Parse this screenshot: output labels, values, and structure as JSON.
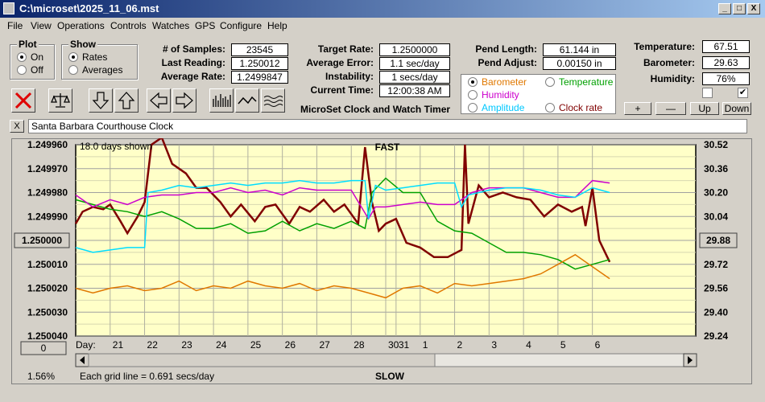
{
  "window": {
    "title": "C:\\microset\\2025_11_06.mst",
    "min": "_",
    "max": "□",
    "close": "X"
  },
  "menu": [
    "File",
    "View",
    "Operations",
    "Controls",
    "Watches",
    "GPS",
    "Configure",
    "Help"
  ],
  "plot_group": {
    "label": "Plot",
    "options": [
      "On",
      "Off"
    ],
    "selected": "On"
  },
  "show_group": {
    "label": "Show",
    "options": [
      "Rates",
      "Averages"
    ],
    "selected": "Rates"
  },
  "stats": {
    "samples_label": "# of Samples:",
    "samples": "23545",
    "last_label": "Last Reading:",
    "last": "1.250012",
    "avg_label": "Average Rate:",
    "avg": "1.2499847",
    "target_label": "Target Rate:",
    "target": "1.2500000",
    "avgerr_label": "Average Error:",
    "avgerr": "1.1 sec/day",
    "instab_label": "Instability:",
    "instab": "1 secs/day",
    "time_label": "Current Time:",
    "time": "12:00:38 AM",
    "pendlen_label": "Pend Length:",
    "pendlen": "61.144 in",
    "pendadj_label": "Pend Adjust:",
    "pendadj": "0.00150 in",
    "temp_label": "Temperature:",
    "temp": "67.51",
    "baro_label": "Barometer:",
    "baro": "29.63",
    "hum_label": "Humidity:",
    "hum": "76%"
  },
  "app_caption": "MicroSet Clock and Watch Timer",
  "sensor_select": {
    "options": [
      {
        "label": "Barometer",
        "color": "#e07800",
        "selected": true
      },
      {
        "label": "Temperature",
        "color": "#00a000",
        "selected": false
      },
      {
        "label": "Humidity",
        "color": "#cc00cc",
        "selected": false
      },
      {
        "label": "Clock rate",
        "color": "#800000",
        "selected": false
      },
      {
        "label": "Amplitude",
        "color": "#00c8ff",
        "selected": false
      }
    ]
  },
  "small_buttons": {
    "plus": "+",
    "minus": "—",
    "up": "Up",
    "down": "Down",
    "clear": "X",
    "zero": "0"
  },
  "checkboxes": [
    {
      "checked": false
    },
    {
      "checked": true
    }
  ],
  "clock_name": "Santa Barbara Courthouse Clock",
  "chart": {
    "top_label": "FAST",
    "bottom_label": "SLOW",
    "days_shown": "18.0 days shown",
    "grid_note": "Each grid line = 0.691 secs/day",
    "percent": "1.56%",
    "center_value": "1.250000",
    "right_value": "29.88",
    "day_label": "Day:"
  },
  "chart_data": {
    "type": "line",
    "left_axis": {
      "ticks": [
        "1.249960",
        "1.249970",
        "1.249980",
        "1.249990",
        "1.250000",
        "1.250010",
        "1.250020",
        "1.250030",
        "1.250040"
      ],
      "range": [
        1.24996,
        1.25004
      ],
      "reversed": true
    },
    "right_axis": {
      "ticks": [
        "30.52",
        "30.36",
        "30.20",
        "30.04",
        "29.88",
        "29.72",
        "29.56",
        "29.40",
        "29.24"
      ],
      "range": [
        29.24,
        30.52
      ]
    },
    "x_ticks": [
      "21",
      "22",
      "23",
      "24",
      "25",
      "26",
      "27",
      "28",
      "30",
      "31",
      "1",
      "2",
      "3",
      "4",
      "5",
      "6"
    ],
    "x_range": [
      0,
      18
    ],
    "x_tick_positions": [
      1,
      2,
      3,
      4,
      5,
      6,
      7,
      8,
      9,
      9.3,
      10,
      11,
      12,
      13,
      14,
      15
    ],
    "series": [
      {
        "color": "#800000",
        "points": [
          [
            0,
            1.249993
          ],
          [
            0.2,
            1.249988
          ],
          [
            0.5,
            1.249986
          ],
          [
            0.8,
            1.249987
          ],
          [
            1.0,
            1.249985
          ],
          [
            1.3,
            1.249992
          ],
          [
            1.5,
            1.249997
          ],
          [
            1.8,
            1.24999
          ],
          [
            2.0,
            1.249984
          ],
          [
            2.2,
            1.24996
          ],
          [
            2.5,
            1.249957
          ],
          [
            2.8,
            1.249968
          ],
          [
            3.2,
            1.249972
          ],
          [
            3.5,
            1.249978
          ],
          [
            3.8,
            1.249978
          ],
          [
            4.2,
            1.249984
          ],
          [
            4.5,
            1.24999
          ],
          [
            4.8,
            1.249985
          ],
          [
            5.2,
            1.249992
          ],
          [
            5.5,
            1.249986
          ],
          [
            5.8,
            1.249985
          ],
          [
            6.2,
            1.249993
          ],
          [
            6.5,
            1.249986
          ],
          [
            6.8,
            1.249988
          ],
          [
            7.2,
            1.249983
          ],
          [
            7.5,
            1.249988
          ],
          [
            7.8,
            1.249985
          ],
          [
            8.2,
            1.249993
          ],
          [
            8.4,
            1.249961
          ],
          [
            8.6,
            1.249984
          ],
          [
            8.8,
            1.249996
          ],
          [
            9.0,
            1.249993
          ],
          [
            9.3,
            1.249991
          ],
          [
            9.6,
            1.250001
          ],
          [
            10.0,
            1.250003
          ],
          [
            10.4,
            1.250007
          ],
          [
            10.8,
            1.250007
          ],
          [
            11.2,
            1.250004
          ],
          [
            11.3,
            1.24996
          ],
          [
            11.4,
            1.249993
          ],
          [
            11.7,
            1.249977
          ],
          [
            12.0,
            1.249982
          ],
          [
            12.4,
            1.24998
          ],
          [
            12.8,
            1.249982
          ],
          [
            13.2,
            1.249983
          ],
          [
            13.6,
            1.24999
          ],
          [
            14.0,
            1.249985
          ],
          [
            14.4,
            1.249988
          ],
          [
            14.7,
            1.249986
          ],
          [
            14.8,
            1.249994
          ],
          [
            15.0,
            1.249978
          ],
          [
            15.2,
            1.25
          ],
          [
            15.5,
            1.250009
          ]
        ]
      },
      {
        "color": "#00a000",
        "points": [
          [
            0,
            1.249983
          ],
          [
            0.5,
            1.249985
          ],
          [
            1.0,
            1.249987
          ],
          [
            1.5,
            1.249988
          ],
          [
            2.0,
            1.24999
          ],
          [
            2.5,
            1.249988
          ],
          [
            3.0,
            1.249991
          ],
          [
            3.5,
            1.249995
          ],
          [
            4.0,
            1.249995
          ],
          [
            4.5,
            1.249993
          ],
          [
            5.0,
            1.249997
          ],
          [
            5.5,
            1.249996
          ],
          [
            6.0,
            1.249992
          ],
          [
            6.5,
            1.249996
          ],
          [
            7.0,
            1.249993
          ],
          [
            7.5,
            1.249995
          ],
          [
            8.0,
            1.249992
          ],
          [
            8.4,
            1.249995
          ],
          [
            8.6,
            1.24998
          ],
          [
            9.0,
            1.249974
          ],
          [
            9.5,
            1.24998
          ],
          [
            10.0,
            1.24998
          ],
          [
            10.5,
            1.249992
          ],
          [
            11.0,
            1.249996
          ],
          [
            11.5,
            1.249997
          ],
          [
            12.0,
            1.250001
          ],
          [
            12.5,
            1.250005
          ],
          [
            13.0,
            1.250005
          ],
          [
            13.5,
            1.250006
          ],
          [
            14.0,
            1.250008
          ],
          [
            14.5,
            1.250012
          ],
          [
            15.0,
            1.25001
          ],
          [
            15.5,
            1.250008
          ]
        ]
      },
      {
        "color": "#e07800",
        "points": [
          [
            0,
            1.25002
          ],
          [
            0.5,
            1.250022
          ],
          [
            1.0,
            1.25002
          ],
          [
            1.5,
            1.250019
          ],
          [
            2.0,
            1.250021
          ],
          [
            2.5,
            1.25002
          ],
          [
            3.0,
            1.250017
          ],
          [
            3.5,
            1.250021
          ],
          [
            4.0,
            1.250019
          ],
          [
            4.5,
            1.25002
          ],
          [
            5.0,
            1.250017
          ],
          [
            5.5,
            1.250019
          ],
          [
            6.0,
            1.25002
          ],
          [
            6.5,
            1.250018
          ],
          [
            7.0,
            1.250021
          ],
          [
            7.5,
            1.250019
          ],
          [
            8.0,
            1.25002
          ],
          [
            8.5,
            1.250022
          ],
          [
            9.0,
            1.250024
          ],
          [
            9.5,
            1.25002
          ],
          [
            10.0,
            1.250019
          ],
          [
            10.5,
            1.250022
          ],
          [
            11.0,
            1.250018
          ],
          [
            11.5,
            1.250019
          ],
          [
            12.0,
            1.250018
          ],
          [
            12.5,
            1.250017
          ],
          [
            13.0,
            1.250016
          ],
          [
            13.5,
            1.250014
          ],
          [
            14.0,
            1.25001
          ],
          [
            14.5,
            1.250006
          ],
          [
            15.0,
            1.250011
          ],
          [
            15.5,
            1.250016
          ]
        ]
      },
      {
        "color": "#cc00cc",
        "points": [
          [
            0,
            1.249981
          ],
          [
            0.5,
            1.249986
          ],
          [
            1.0,
            1.249983
          ],
          [
            1.5,
            1.249985
          ],
          [
            2.0,
            1.249982
          ],
          [
            2.5,
            1.249981
          ],
          [
            3.0,
            1.249981
          ],
          [
            3.5,
            1.24998
          ],
          [
            4.0,
            1.24998
          ],
          [
            4.5,
            1.249978
          ],
          [
            5.0,
            1.24998
          ],
          [
            5.5,
            1.249979
          ],
          [
            6.0,
            1.249981
          ],
          [
            6.5,
            1.249978
          ],
          [
            7.0,
            1.249979
          ],
          [
            7.5,
            1.249979
          ],
          [
            8.0,
            1.249979
          ],
          [
            8.5,
            1.249991
          ],
          [
            8.7,
            1.249986
          ],
          [
            9.0,
            1.249986
          ],
          [
            9.5,
            1.249985
          ],
          [
            10.0,
            1.249984
          ],
          [
            10.5,
            1.249985
          ],
          [
            11.0,
            1.249985
          ],
          [
            11.5,
            1.24998
          ],
          [
            12.0,
            1.249978
          ],
          [
            12.5,
            1.249978
          ],
          [
            13.0,
            1.249978
          ],
          [
            13.5,
            1.24998
          ],
          [
            14.0,
            1.249982
          ],
          [
            14.5,
            1.249982
          ],
          [
            15.0,
            1.249975
          ],
          [
            15.5,
            1.249976
          ]
        ]
      },
      {
        "color": "#00ddff",
        "points": [
          [
            0,
            1.250003
          ],
          [
            0.5,
            1.250005
          ],
          [
            1.0,
            1.250004
          ],
          [
            1.5,
            1.250003
          ],
          [
            2.0,
            1.250003
          ],
          [
            2.1,
            1.24998
          ],
          [
            2.5,
            1.249979
          ],
          [
            3.0,
            1.249977
          ],
          [
            3.5,
            1.249978
          ],
          [
            4.0,
            1.249977
          ],
          [
            4.5,
            1.249976
          ],
          [
            5.0,
            1.249977
          ],
          [
            5.5,
            1.249976
          ],
          [
            6.0,
            1.249976
          ],
          [
            6.5,
            1.249975
          ],
          [
            7.0,
            1.249976
          ],
          [
            7.5,
            1.249976
          ],
          [
            8.0,
            1.249975
          ],
          [
            8.4,
            1.249975
          ],
          [
            8.5,
            1.249991
          ],
          [
            8.7,
            1.249977
          ],
          [
            9.0,
            1.249979
          ],
          [
            9.5,
            1.249978
          ],
          [
            10.0,
            1.249977
          ],
          [
            10.5,
            1.249976
          ],
          [
            11.0,
            1.249976
          ],
          [
            11.2,
            1.249986
          ],
          [
            11.4,
            1.249981
          ],
          [
            12.0,
            1.249979
          ],
          [
            12.5,
            1.249978
          ],
          [
            13.0,
            1.249978
          ],
          [
            13.5,
            1.249979
          ],
          [
            14.0,
            1.249981
          ],
          [
            14.5,
            1.249982
          ],
          [
            15.0,
            1.249978
          ],
          [
            15.5,
            1.24998
          ]
        ]
      }
    ]
  }
}
